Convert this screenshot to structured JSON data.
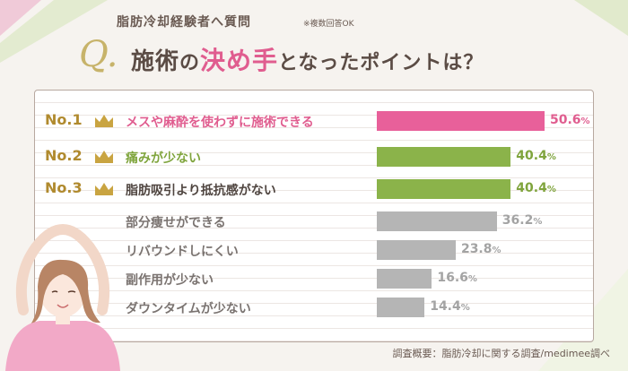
{
  "header": {
    "subtitle": "脂肪冷却経験者へ質問",
    "note": "※複数回答OK",
    "q_mark": "Q.",
    "title_parts": [
      "施術",
      "の",
      "決め手",
      "となったポイントは？"
    ]
  },
  "ranks": [
    "No.1",
    "No.2",
    "No.3"
  ],
  "footer": "調査概要：脂肪冷却に関する調査/medimee調べ",
  "colors": {
    "rank1": "#e8609a",
    "top": "#8bb34a",
    "other": "#b5b5b5",
    "label_top1": "#e05d8f",
    "label_top": "#7fa43c",
    "label_dark": "#4f4540",
    "label_other": "#7a7370",
    "pct_rank1": "#e05d8f",
    "pct_top": "#7fa43c",
    "pct_other": "#a3a3a3"
  },
  "chart_data": {
    "type": "bar",
    "orientation": "horizontal",
    "categories": [
      "メスや麻酔を使わずに施術できる",
      "痛みが少ない",
      "脂肪吸引より抵抗感がない",
      "部分痩せができる",
      "リバウンドしにくい",
      "副作用が少ない",
      "ダウンタイムが少ない"
    ],
    "values": [
      50.6,
      40.4,
      40.4,
      36.2,
      23.8,
      16.6,
      14.4
    ],
    "unit": "%",
    "grid": false
  }
}
